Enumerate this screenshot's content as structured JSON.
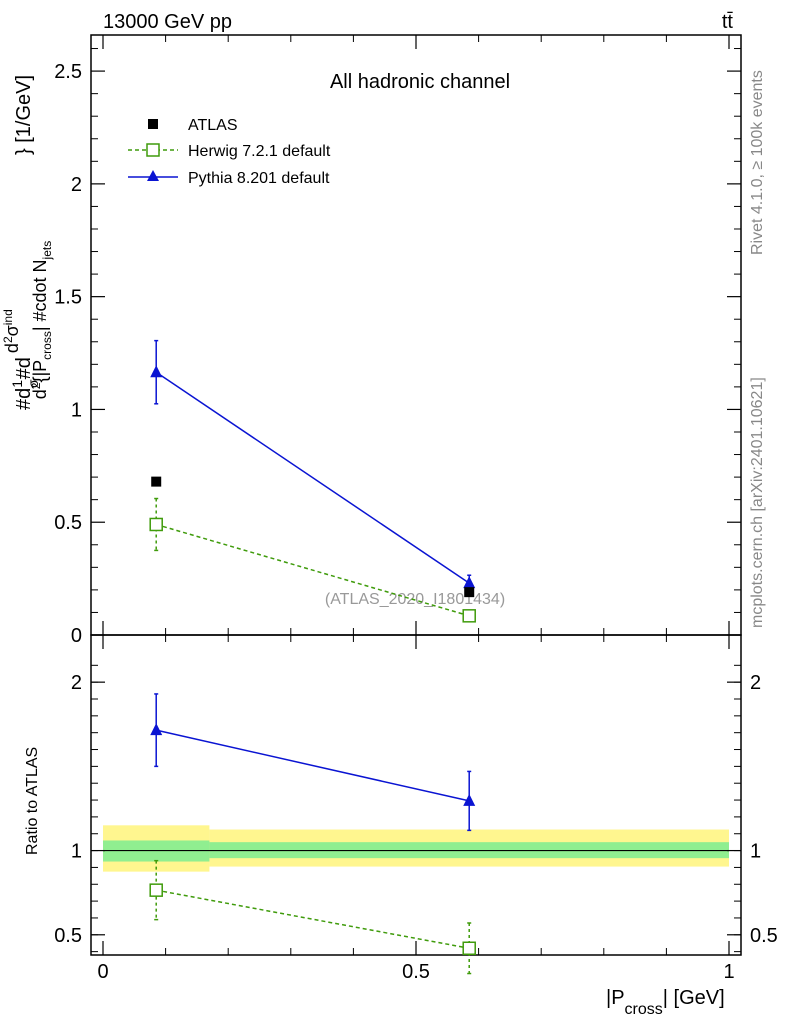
{
  "header": {
    "left": "13000 GeV pp",
    "right": "tt̄"
  },
  "side_text": {
    "rivet": "Rivet 4.1.0, ≥ 100k events",
    "mcplots": "mcplots.cern.ch [arXiv:2401.10621]"
  },
  "chart_data": [
    {
      "type": "scatter",
      "panel": "main",
      "title": "All hadronic channel",
      "watermark": "(ATLAS_2020_I1801434)",
      "ylabel": "#d1/σ#d d²σ^ind / d²{|P_cross| #cdot N_jets} [1/GeV]",
      "ylabel_parts": {
        "p1": "#d",
        "p2": "1",
        "p3": "σ",
        "p4": "#d",
        "p5": "d",
        "p6": "2",
        "p7": "σ",
        "p8": "ind",
        "p9": "d",
        "p10": "2",
        "p11": "{|P",
        "p12": "cross",
        "p13": "| #cdot N",
        "p14": "jets",
        "p15": "} [1/GeV]"
      },
      "xlim": [
        0,
        1
      ],
      "ylim": [
        0,
        2.66
      ],
      "y_ticks": [
        "0",
        "0.5",
        "1",
        "1.5",
        "2",
        "2.5"
      ],
      "y_tick_values": [
        0,
        0.5,
        1,
        1.5,
        2,
        2.5
      ],
      "series": [
        {
          "name": "ATLAS",
          "marker": "square-filled",
          "color": "#000000",
          "x": [
            0.085,
            0.585
          ],
          "y": [
            0.68,
            0.19
          ],
          "err": [
            0.0,
            0.0
          ]
        },
        {
          "name": "Herwig 7.2.1 default",
          "marker": "square-open",
          "color": "#3f9b0b",
          "line": "dashed",
          "x": [
            0.085,
            0.585
          ],
          "y": [
            0.49,
            0.085
          ],
          "err": [
            0.115,
            0.01
          ]
        },
        {
          "name": "Pythia 8.201 default",
          "marker": "triangle",
          "color": "#0a14d2",
          "line": "solid",
          "x": [
            0.085,
            0.585
          ],
          "y": [
            1.165,
            0.23
          ],
          "err": [
            0.14,
            0.035
          ]
        }
      ]
    },
    {
      "type": "scatter",
      "panel": "ratio",
      "ylabel": "Ratio to ATLAS",
      "xlabel_main": "|P",
      "xlabel_sub": "cross",
      "xlabel_tail": "| [GeV]",
      "xlim": [
        0,
        1
      ],
      "ylim": [
        0.38,
        2.28
      ],
      "x_ticks": [
        "0",
        "0.5",
        "1"
      ],
      "x_tick_values": [
        0,
        0.5,
        1
      ],
      "y_ticks": [
        "0.5",
        "1",
        "2"
      ],
      "y_tick_values": [
        0.5,
        1,
        2
      ],
      "bands": [
        {
          "x0": 0,
          "x1": 0.17,
          "yellow": [
            0.875,
            1.15
          ],
          "green": [
            0.935,
            1.06
          ]
        },
        {
          "x0": 0.17,
          "x1": 1,
          "yellow": [
            0.905,
            1.125
          ],
          "green": [
            0.955,
            1.05
          ]
        }
      ],
      "series": [
        {
          "name": "Herwig 7.2.1 default",
          "marker": "square-open",
          "color": "#3f9b0b",
          "line": "dashed",
          "x": [
            0.085,
            0.585
          ],
          "y": [
            0.765,
            0.42
          ],
          "err": [
            0.175,
            0.15
          ]
        },
        {
          "name": "Pythia 8.201 default",
          "marker": "triangle",
          "color": "#0a14d2",
          "line": "solid",
          "x": [
            0.085,
            0.585
          ],
          "y": [
            1.715,
            1.295
          ],
          "err": [
            0.215,
            0.175
          ]
        }
      ]
    }
  ]
}
